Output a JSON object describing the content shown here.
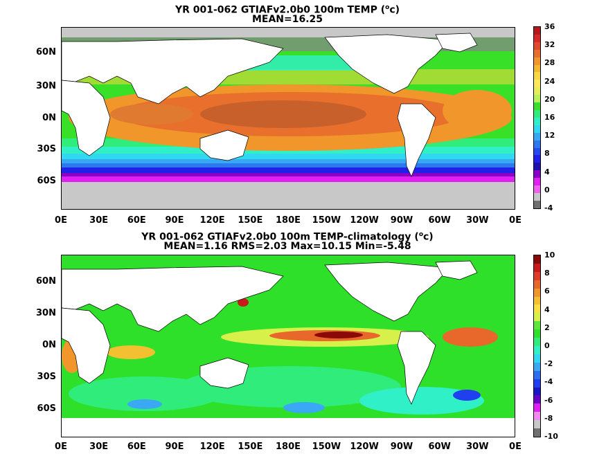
{
  "panel_top": {
    "title_line1": "YR 001-062 GTIAFv2.0b0 100m TEMP (",
    "title_unit": "o",
    "title_tail": "c)",
    "title_line2": "MEAN=16.25",
    "lat_labels": [
      "60N",
      "30N",
      "0N",
      "30S",
      "60S"
    ],
    "lon_labels": [
      "0E",
      "30E",
      "60E",
      "90E",
      "120E",
      "150E",
      "180E",
      "150W",
      "120W",
      "90W",
      "60W",
      "30W",
      "0E"
    ],
    "colorbar_labels": [
      "36",
      "32",
      "28",
      "24",
      "20",
      "16",
      "12",
      "8",
      "4",
      "0",
      "-4"
    ],
    "colorbar_colors": [
      "#b51a1a",
      "#d62828",
      "#e04a2a",
      "#e8702c",
      "#f0962a",
      "#f2b830",
      "#f7d840",
      "#ffe85a",
      "#e6ef5a",
      "#b8f25a",
      "#38e028",
      "#30ec7a",
      "#30f0c8",
      "#30d8f0",
      "#38a8f5",
      "#2c78f0",
      "#2848f0",
      "#2020e8",
      "#2010b0",
      "#8a00c8",
      "#e020f0",
      "#f060f0",
      "#c8c8c8",
      "#707070"
    ]
  },
  "panel_bottom": {
    "title_line1": "YR 001-062 GTIAFv2.0b0 100m TEMP-climatology (",
    "title_unit": "o",
    "title_tail": "c)",
    "title_line2": "MEAN=1.16   RMS=2.03   Max=10.15   Min=-5.48",
    "lat_labels": [
      "60N",
      "30N",
      "0N",
      "30S",
      "60S"
    ],
    "lon_labels": [
      "0E",
      "30E",
      "60E",
      "90E",
      "120E",
      "150E",
      "180E",
      "150W",
      "120W",
      "90W",
      "60W",
      "30W",
      "0E"
    ],
    "colorbar_labels": [
      "10",
      "8",
      "6",
      "4",
      "2",
      "0",
      "-2",
      "-4",
      "-6",
      "-8",
      "-10"
    ],
    "colorbar_colors": [
      "#8a0a0a",
      "#c81a1a",
      "#e03a2a",
      "#e8682c",
      "#f0962a",
      "#f2c030",
      "#f7e040",
      "#d8f04a",
      "#5ce83a",
      "#2ee02a",
      "#30ec7a",
      "#30f0c8",
      "#30d8f0",
      "#3aa8f5",
      "#2870f0",
      "#2040f0",
      "#1818c8",
      "#6a00c8",
      "#e020f0",
      "#f08af0",
      "#c8c8c8",
      "#707070"
    ]
  }
}
